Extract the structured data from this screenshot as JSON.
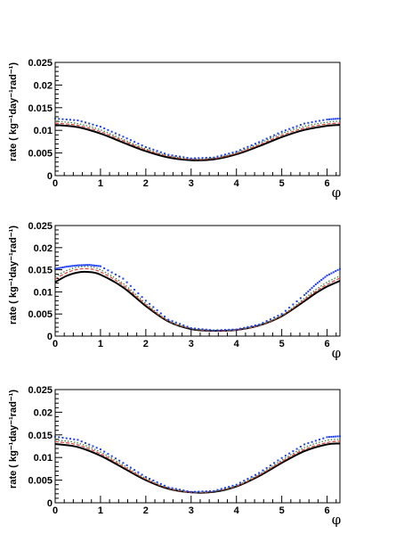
{
  "chart_data": [
    {
      "type": "line",
      "xlabel": "φ",
      "ylabel": "rate ( kg⁻¹day⁻¹rad⁻¹)",
      "xlim": [
        0,
        6.2832
      ],
      "ylim": [
        0,
        0.025
      ],
      "xticks": [
        "0",
        "1",
        "2",
        "3",
        "4",
        "5",
        "6"
      ],
      "yticks": [
        "0",
        "0.005",
        "0.01",
        "0.015",
        "0.02",
        "0.025"
      ],
      "x": [
        0,
        0.5,
        1,
        1.5,
        2,
        2.5,
        3,
        3.5,
        4,
        4.5,
        5,
        5.5,
        6,
        6.2832
      ],
      "series": [
        {
          "color": "#000000",
          "style": "solid",
          "values": [
            0.0112,
            0.0107,
            0.0093,
            0.0073,
            0.0054,
            0.004,
            0.0034,
            0.0036,
            0.0047,
            0.0065,
            0.0085,
            0.0101,
            0.011,
            0.0112
          ]
        },
        {
          "color": "#e0413a",
          "style": "dashed",
          "values": [
            0.0116,
            0.0111,
            0.0097,
            0.0077,
            0.0057,
            0.0043,
            0.0036,
            0.0038,
            0.0049,
            0.0068,
            0.0089,
            0.0105,
            0.0114,
            0.0116
          ]
        },
        {
          "color": "#2e7d32",
          "style": "dotted",
          "values": [
            0.012,
            0.0115,
            0.0101,
            0.008,
            0.0059,
            0.0044,
            0.0037,
            0.0039,
            0.0051,
            0.0071,
            0.0093,
            0.0109,
            0.0118,
            0.012
          ]
        },
        {
          "color": "#1f3fff",
          "style": "points",
          "values": [
            0.0126,
            0.0122,
            0.0108,
            0.0086,
            0.0063,
            0.0046,
            0.0038,
            0.004,
            0.0053,
            0.0074,
            0.0097,
            0.0115,
            0.0124,
            0.0126
          ]
        }
      ]
    },
    {
      "type": "line",
      "xlabel": "φ",
      "ylabel": "rate ( kg⁻¹day⁻¹rad⁻¹)",
      "xlim": [
        0,
        6.2832
      ],
      "ylim": [
        0,
        0.025
      ],
      "xticks": [
        "0",
        "1",
        "2",
        "3",
        "4",
        "5",
        "6"
      ],
      "yticks": [
        "0",
        "0.005",
        "0.01",
        "0.015",
        "0.02",
        "0.025"
      ],
      "x": [
        0,
        0.25,
        0.5,
        0.75,
        1,
        1.5,
        2,
        2.5,
        3,
        3.5,
        4,
        4.5,
        5,
        5.5,
        5.75,
        6,
        6.2832
      ],
      "series": [
        {
          "color": "#000000",
          "style": "solid",
          "values": [
            0.0122,
            0.0136,
            0.0144,
            0.0145,
            0.0139,
            0.011,
            0.0068,
            0.0033,
            0.0016,
            0.0012,
            0.0014,
            0.0024,
            0.0045,
            0.0079,
            0.0097,
            0.0112,
            0.0125
          ]
        },
        {
          "color": "#e0413a",
          "style": "dashed",
          "values": [
            0.0129,
            0.0143,
            0.0151,
            0.0152,
            0.0145,
            0.0115,
            0.0071,
            0.0034,
            0.0017,
            0.0012,
            0.0014,
            0.0024,
            0.0046,
            0.0082,
            0.0101,
            0.0117,
            0.0131
          ]
        },
        {
          "color": "#2e7d32",
          "style": "dotted",
          "values": [
            0.0134,
            0.0148,
            0.0156,
            0.0157,
            0.015,
            0.0119,
            0.0074,
            0.0035,
            0.0017,
            0.0013,
            0.0015,
            0.0025,
            0.0047,
            0.0085,
            0.0105,
            0.0122,
            0.0136
          ]
        },
        {
          "color": "#1f3fff",
          "style": "points",
          "values": [
            0.0152,
            0.0157,
            0.016,
            0.0161,
            0.0158,
            0.013,
            0.008,
            0.0037,
            0.0018,
            0.0013,
            0.0015,
            0.0026,
            0.005,
            0.0093,
            0.0117,
            0.0137,
            0.0152
          ]
        }
      ]
    },
    {
      "type": "line",
      "xlabel": "φ",
      "ylabel": "rate ( kg⁻¹day⁻¹rad⁻¹)",
      "xlim": [
        0,
        6.2832
      ],
      "ylim": [
        0,
        0.025
      ],
      "xticks": [
        "0",
        "1",
        "2",
        "3",
        "4",
        "5",
        "6"
      ],
      "yticks": [
        "0",
        "0.005",
        "0.01",
        "0.015",
        "0.02",
        "0.025"
      ],
      "x": [
        0,
        0.5,
        1,
        1.5,
        2,
        2.5,
        3,
        3.5,
        4,
        4.5,
        5,
        5.5,
        6,
        6.2832
      ],
      "series": [
        {
          "color": "#000000",
          "style": "solid",
          "values": [
            0.013,
            0.0123,
            0.0104,
            0.0077,
            0.005,
            0.0031,
            0.0023,
            0.0024,
            0.0036,
            0.0059,
            0.0088,
            0.0114,
            0.0129,
            0.0131
          ]
        },
        {
          "color": "#e0413a",
          "style": "dashed",
          "values": [
            0.0135,
            0.0128,
            0.0108,
            0.008,
            0.0052,
            0.0032,
            0.0023,
            0.0025,
            0.0037,
            0.0061,
            0.0091,
            0.0118,
            0.0133,
            0.0136
          ]
        },
        {
          "color": "#2e7d32",
          "style": "dotted",
          "values": [
            0.0139,
            0.0132,
            0.0112,
            0.0083,
            0.0054,
            0.0033,
            0.0024,
            0.0025,
            0.0038,
            0.0063,
            0.0094,
            0.0122,
            0.0138,
            0.014
          ]
        },
        {
          "color": "#1f3fff",
          "style": "points",
          "values": [
            0.0146,
            0.0139,
            0.0118,
            0.0088,
            0.0057,
            0.0034,
            0.0024,
            0.0026,
            0.004,
            0.0066,
            0.0099,
            0.0129,
            0.0145,
            0.0147
          ]
        }
      ]
    }
  ]
}
